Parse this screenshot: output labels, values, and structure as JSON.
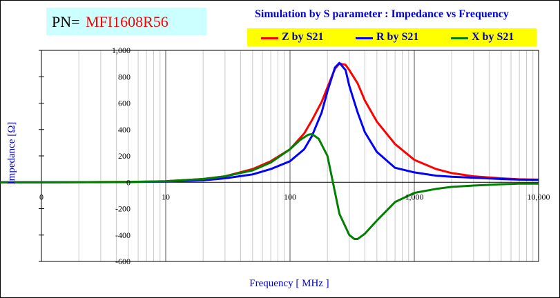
{
  "header": {
    "pn_prefix": "PN=",
    "pn_value": "MFI1608R56",
    "simulation_title": "Simulation by S parameter : Impedance vs Frequency"
  },
  "legend": {
    "items": [
      {
        "label": "Z by S21",
        "color": "#ff0000"
      },
      {
        "label": "R by S21",
        "color": "#0000ff"
      },
      {
        "label": "X by S21",
        "color": "#008000"
      }
    ]
  },
  "chart_data": {
    "type": "line",
    "title": "Simulation by S parameter : Impedance vs Frequency",
    "xlabel": "Frequency [ MHz ]",
    "ylabel": "Impedance [Ω]",
    "x_scale": "log",
    "xlim": [
      1,
      10000
    ],
    "ylim": [
      -600,
      1000
    ],
    "x_ticks": [
      {
        "value": 1,
        "label": "0"
      },
      {
        "value": 10,
        "label": "10"
      },
      {
        "value": 100,
        "label": "100"
      },
      {
        "value": 1000,
        "label": "1,000"
      },
      {
        "value": 10000,
        "label": "10,000"
      }
    ],
    "y_ticks": [
      {
        "value": 1000,
        "label": "1,000"
      },
      {
        "value": 800,
        "label": "800"
      },
      {
        "value": 600,
        "label": "600"
      },
      {
        "value": 400,
        "label": "400"
      },
      {
        "value": 200,
        "label": "200"
      },
      {
        "value": 0,
        "label": "0"
      },
      {
        "value": -200,
        "label": "-200"
      },
      {
        "value": -400,
        "label": "-400"
      },
      {
        "value": -600,
        "label": "-600"
      }
    ],
    "grid": true,
    "legend_position": "top",
    "series": [
      {
        "name": "Z by S21",
        "color": "#ff0000",
        "x": [
          0.3,
          1,
          3,
          5,
          10,
          20,
          30,
          50,
          70,
          100,
          130,
          150,
          180,
          200,
          230,
          250,
          280,
          300,
          350,
          400,
          500,
          700,
          1000,
          1500,
          2000,
          3000,
          5000,
          7000,
          10000
        ],
        "y": [
          0,
          0,
          2,
          3,
          8,
          25,
          45,
          100,
          160,
          250,
          370,
          470,
          610,
          720,
          860,
          900,
          890,
          850,
          750,
          620,
          460,
          290,
          170,
          100,
          70,
          45,
          30,
          23,
          20
        ]
      },
      {
        "name": "R by S21",
        "color": "#0000ff",
        "x": [
          0.3,
          1,
          3,
          5,
          10,
          20,
          30,
          50,
          70,
          100,
          130,
          150,
          180,
          200,
          230,
          250,
          280,
          300,
          350,
          400,
          500,
          700,
          1000,
          1500,
          2000,
          3000,
          5000,
          7000,
          10000
        ],
        "y": [
          0,
          0,
          1,
          2,
          5,
          15,
          30,
          60,
          100,
          160,
          250,
          350,
          530,
          690,
          870,
          905,
          850,
          730,
          530,
          380,
          230,
          110,
          75,
          50,
          42,
          35,
          25,
          20,
          18
        ]
      },
      {
        "name": "X by S21",
        "color": "#008000",
        "x": [
          0.3,
          1,
          3,
          5,
          10,
          20,
          30,
          50,
          70,
          100,
          120,
          140,
          150,
          170,
          200,
          250,
          300,
          330,
          350,
          400,
          500,
          700,
          1000,
          1500,
          2000,
          3000,
          5000,
          7000,
          10000
        ],
        "y": [
          0,
          0,
          2,
          3,
          8,
          25,
          45,
          90,
          150,
          250,
          320,
          360,
          365,
          330,
          200,
          -240,
          -400,
          -430,
          -430,
          -390,
          -290,
          -150,
          -80,
          -50,
          -35,
          -25,
          -15,
          -10,
          -10
        ]
      }
    ]
  }
}
